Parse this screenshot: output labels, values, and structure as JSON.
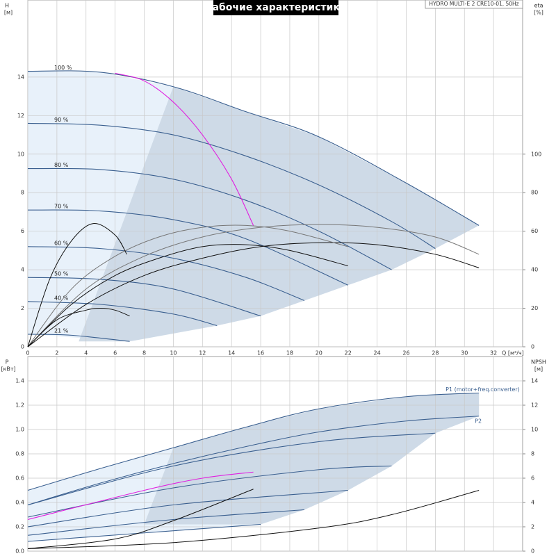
{
  "chart_data": [
    {
      "type": "line",
      "title": "Рабочие характеристики",
      "subtitle": "HYDRO MULTI-E 2 CRE10-01, 50Hz",
      "ylabel": "H",
      "yunit": "[м]",
      "y2label": "eta",
      "y2unit": "[%]",
      "xlabel": "Q [м³/ч]",
      "xlim": [
        0,
        34
      ],
      "xticks": [
        0,
        2,
        4,
        6,
        8,
        10,
        12,
        14,
        16,
        18,
        20,
        22,
        24,
        26,
        28,
        30,
        32
      ],
      "ylim": [
        0,
        18
      ],
      "yticks": [
        0,
        2,
        4,
        6,
        8,
        10,
        12,
        14
      ],
      "y2lim": [
        0,
        180
      ],
      "y2ticks": [
        0,
        20,
        40,
        60,
        80,
        100
      ],
      "grid": true,
      "series": [
        {
          "name": "100 %",
          "color": "#3a5f8f",
          "x": [
            0,
            5,
            10,
            15,
            20,
            26,
            31
          ],
          "values": [
            14.3,
            14.25,
            13.5,
            12.2,
            10.9,
            8.5,
            6.3
          ]
        },
        {
          "name": "90 %",
          "color": "#3a5f8f",
          "x": [
            0,
            5,
            10,
            15,
            20,
            25,
            28
          ],
          "values": [
            11.6,
            11.5,
            11.0,
            9.9,
            8.4,
            6.5,
            5.1
          ]
        },
        {
          "name": "80 %",
          "color": "#3a5f8f",
          "x": [
            0,
            5,
            10,
            15,
            20,
            25
          ],
          "values": [
            9.25,
            9.2,
            8.7,
            7.6,
            6.0,
            4.0
          ]
        },
        {
          "name": "70 %",
          "color": "#3a5f8f",
          "x": [
            0,
            5,
            10,
            15,
            22
          ],
          "values": [
            7.1,
            7.05,
            6.6,
            5.6,
            3.2
          ]
        },
        {
          "name": "60 %",
          "color": "#3a5f8f",
          "x": [
            0,
            5,
            10,
            15,
            19
          ],
          "values": [
            5.2,
            5.1,
            4.6,
            3.6,
            2.4
          ]
        },
        {
          "name": "50 %",
          "color": "#3a5f8f",
          "x": [
            0,
            5,
            10,
            16
          ],
          "values": [
            3.6,
            3.5,
            3.0,
            1.6
          ]
        },
        {
          "name": "40 %",
          "color": "#3a5f8f",
          "x": [
            0,
            5,
            10,
            13
          ],
          "values": [
            2.35,
            2.2,
            1.7,
            1.1
          ]
        },
        {
          "name": "21 %",
          "color": "#3a5f8f",
          "x": [
            0,
            3,
            7
          ],
          "values": [
            0.65,
            0.6,
            0.28
          ]
        },
        {
          "color": "#e020e0",
          "x": [
            6,
            8,
            10,
            12,
            14,
            15.5
          ],
          "values": [
            14.2,
            13.8,
            12.7,
            11.0,
            8.7,
            6.3
          ]
        },
        {
          "color": "#777777",
          "axis": "y2",
          "x": [
            0,
            4,
            8,
            12,
            16,
            20,
            24,
            28,
            31
          ],
          "values": [
            0,
            30,
            47,
            57,
            62,
            63.5,
            62,
            57,
            48
          ]
        },
        {
          "color": "#111111",
          "axis": "y2",
          "x": [
            0,
            4,
            8,
            12,
            16,
            20,
            24,
            28,
            31
          ],
          "values": [
            0,
            22,
            37,
            46,
            52,
            54,
            53,
            48,
            41
          ]
        },
        {
          "color": "#777777",
          "axis": "y2",
          "x": [
            0,
            3,
            6,
            9,
            12,
            15,
            18,
            22
          ],
          "values": [
            0,
            30,
            47,
            57,
            62,
            63,
            60,
            52
          ]
        },
        {
          "color": "#111111",
          "axis": "y2",
          "x": [
            0,
            3,
            6,
            9,
            12,
            15,
            18,
            22
          ],
          "values": [
            0,
            22,
            37,
            46,
            52,
            53,
            50,
            42
          ]
        },
        {
          "color": "#111111",
          "axis": "y2",
          "x": [
            0,
            1.5,
            3,
            4.5,
            6,
            6.8
          ],
          "values": [
            0,
            35,
            55,
            64,
            58,
            48
          ]
        },
        {
          "color": "#111111",
          "axis": "y2",
          "x": [
            0,
            2,
            4,
            5,
            6,
            7
          ],
          "values": [
            0,
            14,
            19,
            20,
            19,
            16
          ]
        }
      ]
    },
    {
      "type": "line",
      "ylabel": "P",
      "yunit": "[кВт]",
      "y2label": "NPSH",
      "y2unit": "[м]",
      "xlim": [
        0,
        34
      ],
      "xticks": [
        0,
        2,
        4,
        6,
        8,
        10,
        12,
        14,
        16,
        18,
        20,
        22,
        24,
        26,
        28,
        30,
        32
      ],
      "ylim": [
        0,
        1.6
      ],
      "yticks": [
        {
          "value": 0,
          "label": "0.0"
        },
        0.2,
        0.4,
        0.6,
        0.8,
        {
          "value": 1,
          "label": "1.0"
        },
        1.2,
        1.4
      ],
      "y2lim": [
        0,
        16
      ],
      "y2ticks": [
        0,
        2,
        4,
        6,
        8,
        10,
        12,
        14
      ],
      "grid": true,
      "series": [
        {
          "name": "P1 (motor+freq.converter)",
          "color": "#3a5f8f",
          "x": [
            0,
            5,
            10,
            15,
            20,
            26,
            31
          ],
          "values": [
            0.5,
            0.68,
            0.85,
            1.02,
            1.17,
            1.27,
            1.3
          ]
        },
        {
          "name": "P2",
          "color": "#3a5f8f",
          "x": [
            0,
            5,
            10,
            15,
            20,
            26,
            31
          ],
          "values": [
            0.38,
            0.56,
            0.72,
            0.86,
            0.98,
            1.07,
            1.11
          ]
        },
        {
          "color": "#3a5f8f",
          "x": [
            0,
            10,
            20,
            28
          ],
          "values": [
            0.38,
            0.7,
            0.9,
            0.97
          ]
        },
        {
          "color": "#3a5f8f",
          "x": [
            0,
            10,
            20,
            25
          ],
          "values": [
            0.28,
            0.52,
            0.67,
            0.7
          ]
        },
        {
          "color": "#3a5f8f",
          "x": [
            0,
            10,
            22
          ],
          "values": [
            0.2,
            0.38,
            0.5
          ]
        },
        {
          "color": "#3a5f8f",
          "x": [
            0,
            10,
            19
          ],
          "values": [
            0.13,
            0.26,
            0.34
          ]
        },
        {
          "color": "#3a5f8f",
          "x": [
            0,
            16
          ],
          "values": [
            0.08,
            0.22
          ]
        },
        {
          "color": "#e020e0",
          "x": [
            0,
            8,
            12,
            15.5
          ],
          "values": [
            0.26,
            0.5,
            0.6,
            0.65
          ]
        },
        {
          "color": "#111111",
          "axis": "y2",
          "x": [
            0,
            10,
            20,
            25,
            31
          ],
          "values": [
            0.2,
            0.7,
            1.9,
            3.0,
            5.0
          ]
        },
        {
          "color": "#111111",
          "axis": "y2",
          "x": [
            0,
            6,
            10,
            15.5
          ],
          "values": [
            0.2,
            1.0,
            2.5,
            5.1
          ]
        }
      ]
    }
  ]
}
